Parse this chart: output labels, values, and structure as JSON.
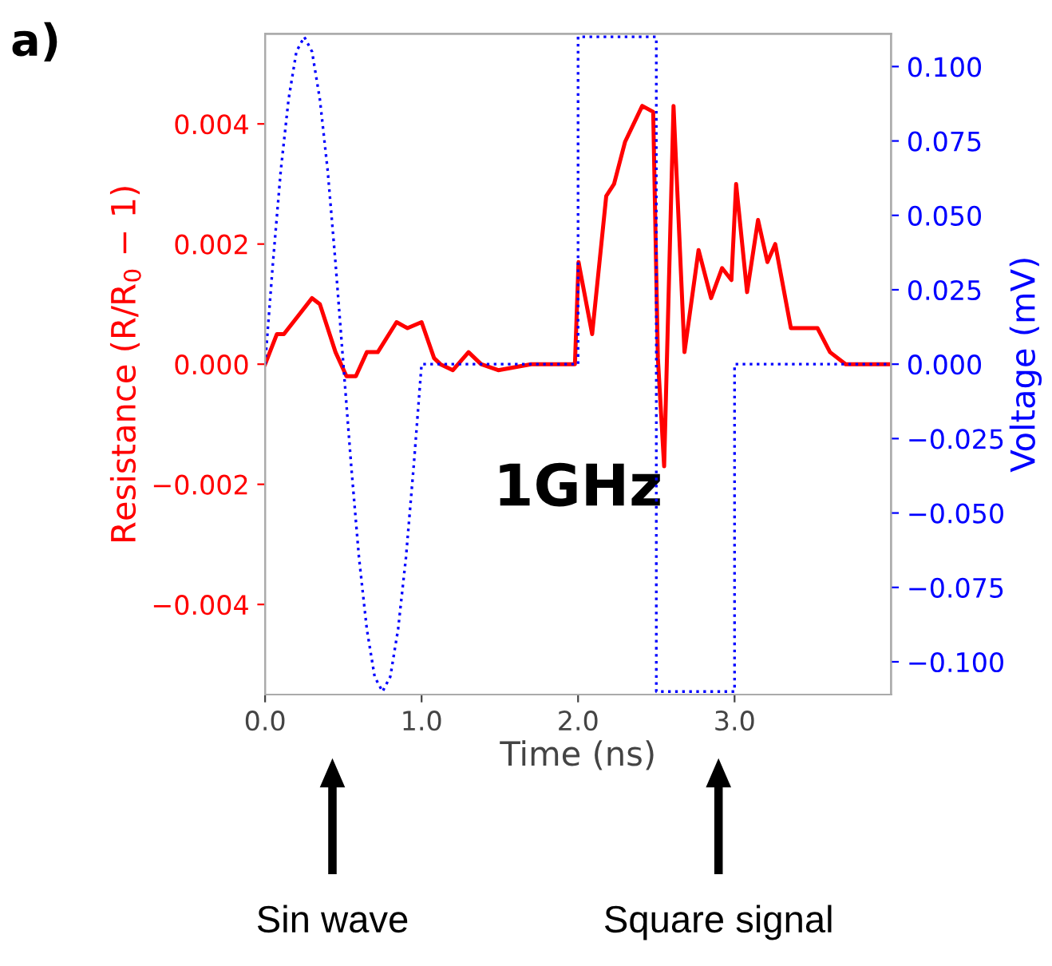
{
  "chart_data": {
    "type": "line",
    "title": "a)",
    "xlabel": "Time (ns)",
    "ylabel": "Resistance (R/R$_{0}$ − 1)",
    "y2label": "Voltage (mV)",
    "xlim": [
      0,
      4
    ],
    "xticks": [
      {
        "value": 0,
        "label": "0.0"
      },
      {
        "value": 1,
        "label": "1.0"
      },
      {
        "value": 2,
        "label": "2.0"
      },
      {
        "value": 3,
        "label": "3.0"
      }
    ],
    "ylim": [
      -0.0055,
      0.0055
    ],
    "yticks": [
      {
        "value": -0.004,
        "label": "−0.004"
      },
      {
        "value": -0.002,
        "label": "−0.002"
      },
      {
        "value": 0,
        "label": "0.000"
      },
      {
        "value": 0.002,
        "label": "0.002"
      },
      {
        "value": 0.004,
        "label": "0.004"
      }
    ],
    "y2lim": [
      -0.111,
      0.111
    ],
    "y2ticks": [
      {
        "value": -0.1,
        "label": "−0.100"
      },
      {
        "value": -0.075,
        "label": "−0.075"
      },
      {
        "value": -0.05,
        "label": "−0.050"
      },
      {
        "value": -0.025,
        "label": "−0.025"
      },
      {
        "value": 0,
        "label": "0.000"
      },
      {
        "value": 0.025,
        "label": "0.025"
      },
      {
        "value": 0.05,
        "label": "0.050"
      },
      {
        "value": 0.075,
        "label": "0.075"
      },
      {
        "value": 0.1,
        "label": "0.100"
      }
    ],
    "grid": false,
    "legend": false,
    "series": [
      {
        "color": "#ff0000",
        "line_style": "solid",
        "x": [
          0,
          0.075,
          0.12,
          0.21,
          0.3,
          0.35,
          0.45,
          0.52,
          0.58,
          0.65,
          0.72,
          0.84,
          0.91,
          1.0,
          1.08,
          1.12,
          1.2,
          1.3,
          1.38,
          1.49,
          1.7,
          1.98,
          2.003,
          2.01,
          2.09,
          2.18,
          2.23,
          2.3,
          2.41,
          2.48,
          2.51,
          2.55,
          2.61,
          2.68,
          2.77,
          2.85,
          2.92,
          2.98,
          3.01,
          3.08,
          3.15,
          3.21,
          3.26,
          3.36,
          3.53,
          3.61,
          3.71,
          3.8,
          3.99
        ],
        "values": [
          0,
          0.0005,
          0.0005,
          0.0008,
          0.0011,
          0.001,
          0.0002,
          -0.0002,
          -0.0002,
          0.0002,
          0.0002,
          0.0007,
          0.0006,
          0.0007,
          0.0001,
          0,
          -0.0001,
          0.0002,
          0,
          -0.0001,
          0,
          0,
          0.0017,
          0.0016,
          0.0005,
          0.0028,
          0.003,
          0.0037,
          0.0043,
          0.0042,
          0.0001,
          -0.0017,
          0.0043,
          0.0002,
          0.0019,
          0.0011,
          0.0016,
          0.0014,
          0.003,
          0.0012,
          0.0024,
          0.0017,
          0.002,
          0.0006,
          0.0006,
          0.0002,
          0,
          0,
          0
        ]
      },
      {
        "color": "#0000ff",
        "axis": "y2",
        "line_style": "dotted",
        "x": [
          0,
          0.05,
          0.1,
          0.15,
          0.2,
          0.25,
          0.3,
          0.35,
          0.4,
          0.45,
          0.5,
          0.55,
          0.6,
          0.65,
          0.7,
          0.75,
          0.8,
          0.85,
          0.9,
          0.95,
          1.0,
          2.0,
          2.0,
          2.5,
          2.5,
          3.0,
          3.0,
          4.0
        ],
        "values": [
          0,
          0.034,
          0.065,
          0.089,
          0.105,
          0.11,
          0.105,
          0.089,
          0.065,
          0.034,
          0,
          -0.034,
          -0.065,
          -0.089,
          -0.105,
          -0.11,
          -0.105,
          -0.089,
          -0.065,
          -0.034,
          0,
          0,
          0.11,
          0.11,
          -0.11,
          -0.11,
          0,
          0
        ]
      }
    ],
    "annotations": [
      "1GHz",
      "Sin wave",
      "Square signal"
    ]
  }
}
